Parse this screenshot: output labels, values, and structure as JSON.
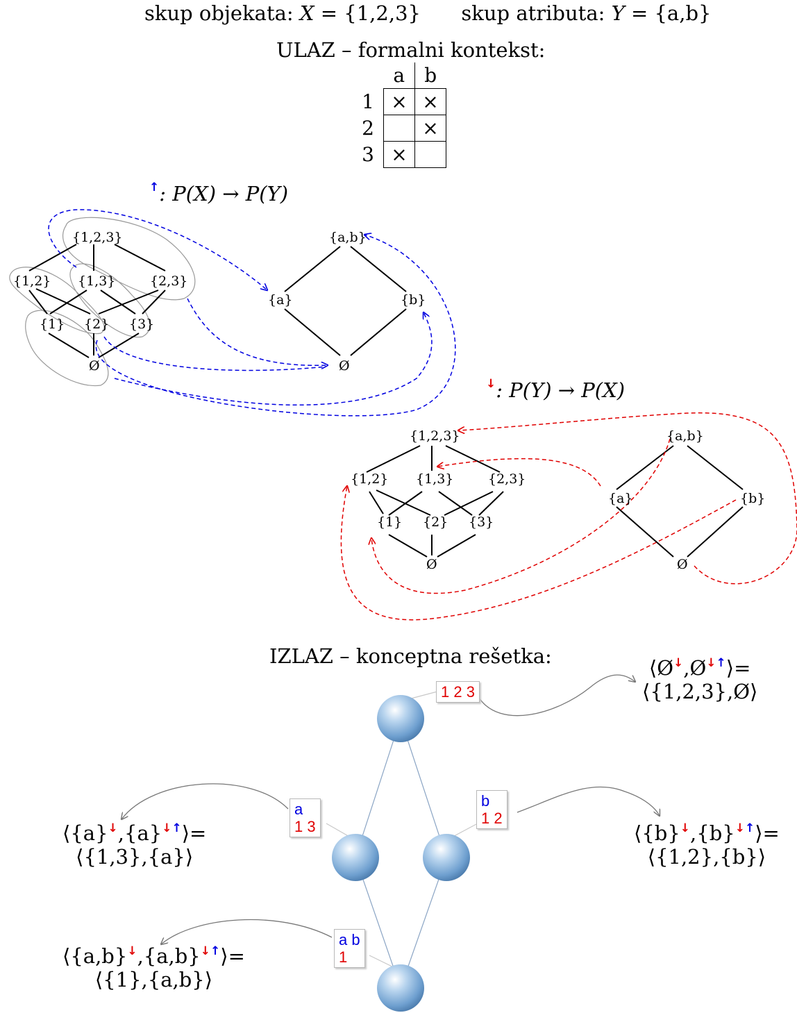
{
  "header": {
    "objects_label": "skup objekata: ",
    "objects_var": "X",
    "objects_set": " = {1,2,3}",
    "attributes_label": "skup atributa: ",
    "attributes_var": "Y",
    "attributes_set": " = {a,b}"
  },
  "input_title": "ULAZ – formalni kontekst:",
  "context": {
    "columns": [
      "a",
      "b"
    ],
    "rows": [
      {
        "object": "1",
        "cells": [
          "×",
          "×"
        ]
      },
      {
        "object": "2",
        "cells": [
          "",
          "×"
        ]
      },
      {
        "object": "3",
        "cells": [
          "×",
          ""
        ]
      }
    ]
  },
  "up_map": {
    "arrow": "↑",
    "text": ": P(X) → P(Y)",
    "color": "#0000e0"
  },
  "down_map": {
    "arrow": "↓",
    "text": ": P(Y) → P(X)",
    "color": "#e00000"
  },
  "powerset_x": {
    "nodes": [
      "{1,2,3}",
      "{1,2}",
      "{1,3}",
      "{2,3}",
      "{1}",
      "{2}",
      "{3}",
      "Ø"
    ]
  },
  "powerset_y": {
    "nodes": [
      "{a,b}",
      "{a}",
      "{b}",
      "Ø"
    ]
  },
  "output_title": "IZLAZ – konceptna rešetka:",
  "concepts": [
    {
      "attrs": "",
      "objs": "1 2 3",
      "formula_top": "⟨Ø↓,Ø↓↑⟩=",
      "formula_bottom": "⟨{1,2,3},Ø⟩"
    },
    {
      "attrs": "a",
      "objs": "1 3",
      "formula_bottom": "⟨{1,3},{a}⟩"
    },
    {
      "attrs": "b",
      "objs": "1 2",
      "formula_bottom": "⟨{1,2},{b}⟩"
    },
    {
      "attrs": "a b",
      "objs": "1",
      "formula_bottom": "⟨{1},{a,b}⟩"
    }
  ],
  "formula_parts": {
    "empty": "Ø",
    "set_a": "{a}",
    "set_b": "{b}",
    "set_ab": "{a,b}",
    "eq": "⟩=",
    "open": "⟨",
    "comma": ",",
    "down": "↓",
    "downup_d": "↓",
    "downup_u": "↑"
  },
  "colors": {
    "object_red": "#e00000",
    "attribute_blue": "#0000e0",
    "sphere": "#8fb8e0"
  }
}
